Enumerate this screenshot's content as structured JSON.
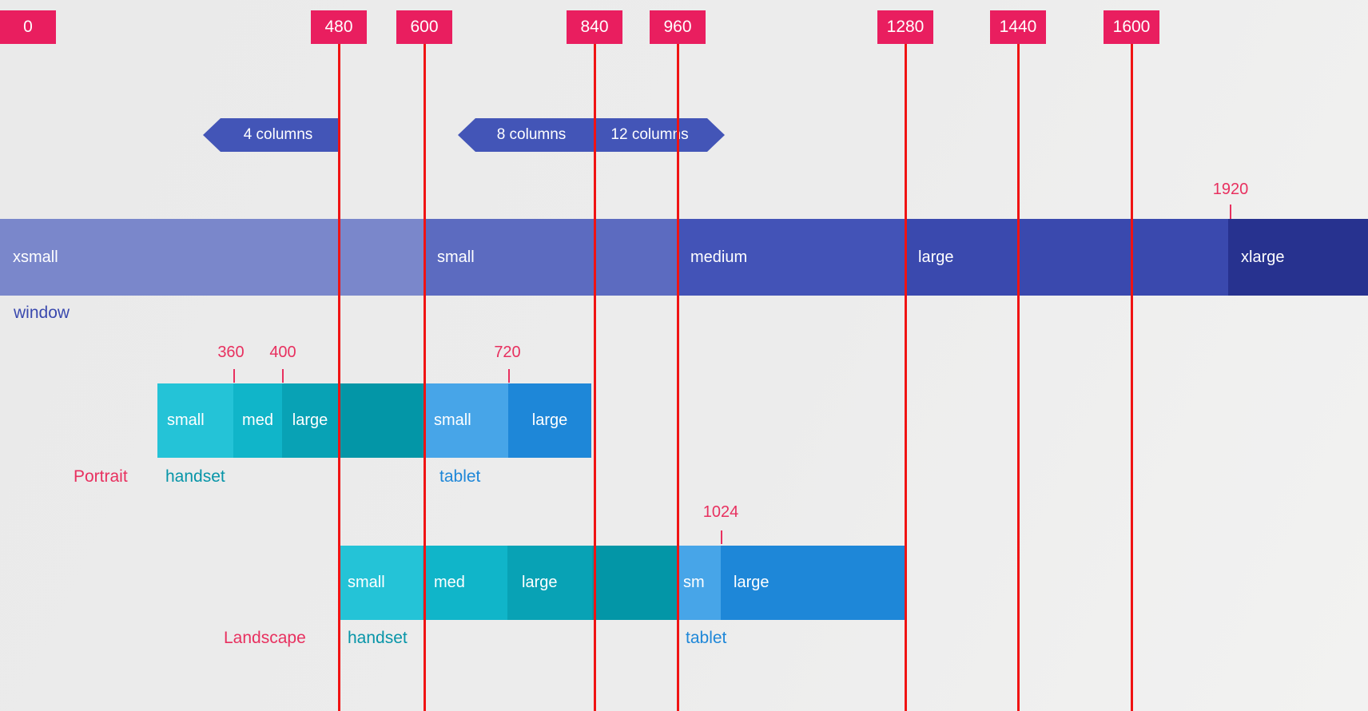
{
  "diagram_title": "breakpoint system diagram",
  "colors": {
    "background": "#ECECEC",
    "flag_bg": "#E91E5F",
    "flag_text": "#FFFFFF",
    "breakpoint_line": "#F01313",
    "pink_text": "#E8305F",
    "tick": "#E8305F",
    "column_band": "#4355B7",
    "window_caption": "#3A49AE",
    "handset_caption": "#0795A8",
    "tablet_caption": "#1E87D8",
    "segment_text": "#FFFFFF"
  },
  "breakpoints": {
    "flags": [
      {
        "label": "0"
      },
      {
        "label": "480"
      },
      {
        "label": "600"
      },
      {
        "label": "840"
      },
      {
        "label": "960"
      },
      {
        "label": "1280"
      },
      {
        "label": "1440"
      },
      {
        "label": "1600"
      }
    ]
  },
  "column_bands": [
    {
      "segments": [
        {
          "label": "4 columns"
        }
      ]
    },
    {
      "segments": [
        {
          "label": "8 columns"
        },
        {
          "label": "12 columns"
        }
      ]
    }
  ],
  "window_band": {
    "caption": "window",
    "segments": [
      {
        "label": "xsmall",
        "color": "#7A87CB"
      },
      {
        "label": "small",
        "color": "#5C6BC0"
      },
      {
        "label": "medium",
        "color": "#4353B7"
      },
      {
        "label": "large",
        "color": "#3A49AE"
      },
      {
        "label": "xlarge",
        "color": "#27328F"
      }
    ],
    "max_marker": {
      "label": "1920"
    }
  },
  "rows": {
    "portrait": {
      "row_label": "Portrait",
      "markers": [
        {
          "label": "360"
        },
        {
          "label": "400"
        },
        {
          "label": "720"
        }
      ],
      "groups": [
        {
          "caption": "handset",
          "segments": [
            {
              "label": "small",
              "color": "#24C3D7"
            },
            {
              "label": "med",
              "color": "#10B5C9"
            },
            {
              "label": "large",
              "color": "#08A2B5"
            },
            {
              "label": "",
              "color": "#0396A7"
            }
          ]
        },
        {
          "caption": "tablet",
          "segments": [
            {
              "label": "small",
              "color": "#47A5E8"
            },
            {
              "label": "large",
              "color": "#1E87D8"
            }
          ]
        }
      ]
    },
    "landscape": {
      "row_label": "Landscape",
      "markers": [
        {
          "label": "1024"
        }
      ],
      "groups": [
        {
          "caption": "handset",
          "segments": [
            {
              "label": "small",
              "color": "#24C3D7"
            },
            {
              "label": "med",
              "color": "#10B5C9"
            },
            {
              "label": "large",
              "color": "#08A2B5"
            },
            {
              "label": "",
              "color": "#0396A7"
            }
          ]
        },
        {
          "caption": "tablet",
          "segments": [
            {
              "label": "sm",
              "color": "#47A5E8"
            },
            {
              "label": "large",
              "color": "#1E87D8"
            }
          ]
        }
      ]
    }
  }
}
